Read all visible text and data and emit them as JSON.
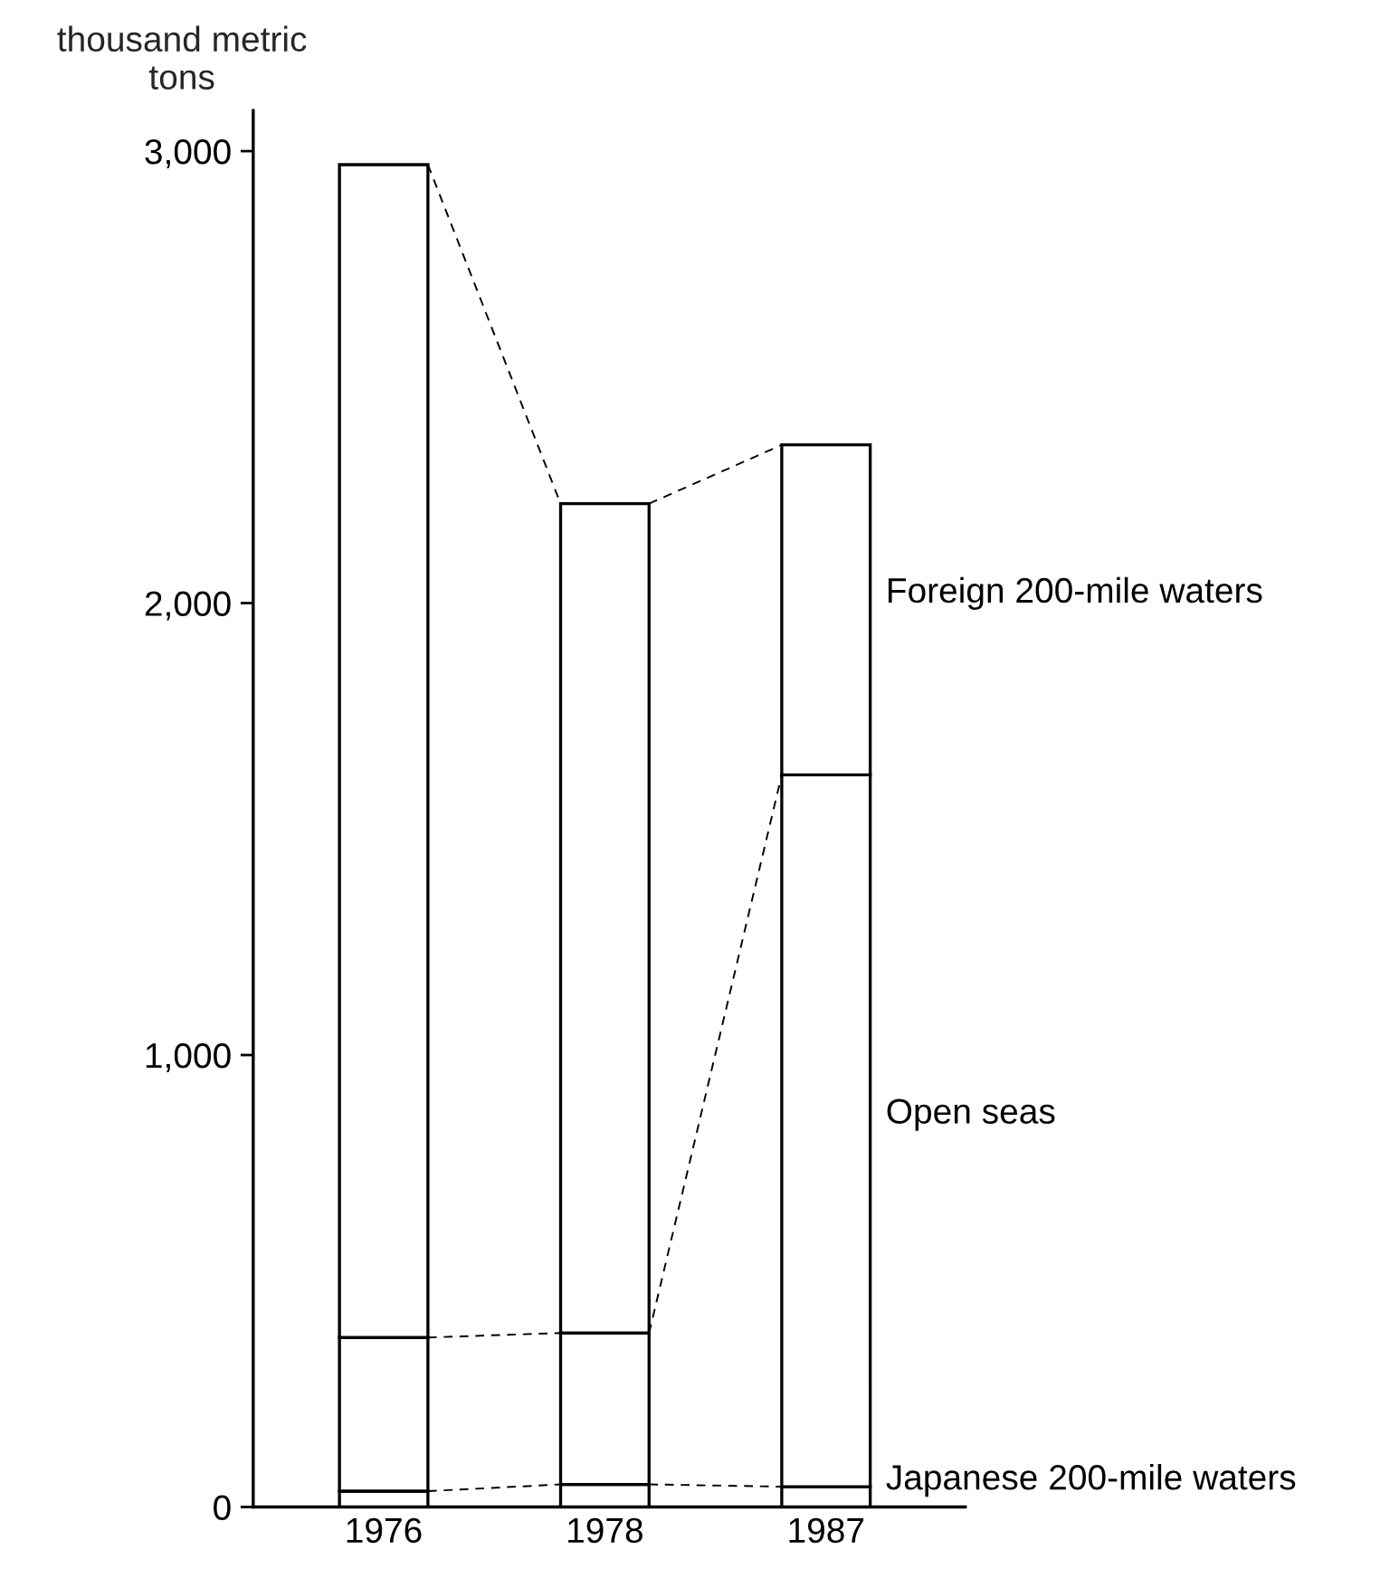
{
  "chart_data": {
    "type": "bar",
    "stacked": true,
    "ylabel": "thousand metric\ntons",
    "categories": [
      "1976",
      "1978",
      "1987"
    ],
    "series": [
      {
        "name": "Japanese 200-mile waters",
        "color": "#ffffff",
        "values": [
          35,
          50,
          45
        ]
      },
      {
        "name": "Open seas",
        "color": "#ffffff",
        "values": [
          340,
          335,
          1575
        ]
      },
      {
        "name": "Foreign 200-mile waters",
        "color": "#ffffff",
        "values": [
          2595,
          1835,
          730
        ]
      }
    ],
    "ylim": [
      0,
      3090
    ],
    "yticks": [
      0,
      {
        "value": 1000,
        "label": "1,000"
      },
      {
        "value": 2000,
        "label": "2,000"
      },
      {
        "value": 3000,
        "label": "3,000"
      }
    ],
    "line_style": "dashed"
  }
}
